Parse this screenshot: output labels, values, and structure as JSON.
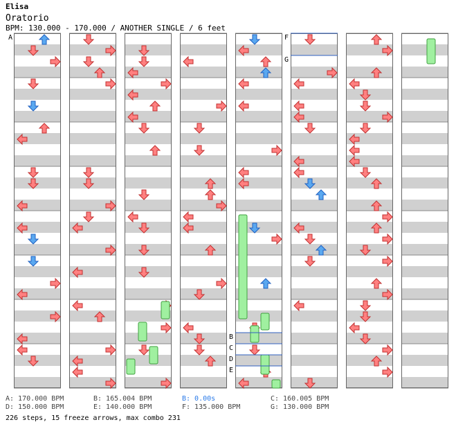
{
  "song": {
    "artist": "Elisa",
    "title": "Oratorio",
    "info": "BPM: 130.000 - 170.000 / ANOTHER SINGLE / 6 feet"
  },
  "bpm_legend": [
    {
      "id": "A",
      "label": "A: 170.000 BPM"
    },
    {
      "id": "B",
      "label": "B: 165.004 BPM"
    },
    {
      "id": "B2",
      "label": "B: 0.00s",
      "highlight": true
    },
    {
      "id": "C",
      "label": "C: 160.005 BPM"
    },
    {
      "id": "D",
      "label": "D: 150.000 BPM"
    },
    {
      "id": "E",
      "label": "E: 140.000 BPM"
    },
    {
      "id": "F",
      "label": "F: 135.000 BPM"
    },
    {
      "id": "G",
      "label": "G: 130.000 BPM"
    }
  ],
  "summary": "226 steps, 15 freeze arrows, max combo 231",
  "chart_markers": [
    "A",
    "B",
    "C",
    "D",
    "E",
    "F",
    "G"
  ],
  "colors": {
    "step": "#ff8080",
    "step_alt": "#5aa8f0",
    "freeze": "#a0f0a0",
    "stripe": "#d0d0d0"
  }
}
